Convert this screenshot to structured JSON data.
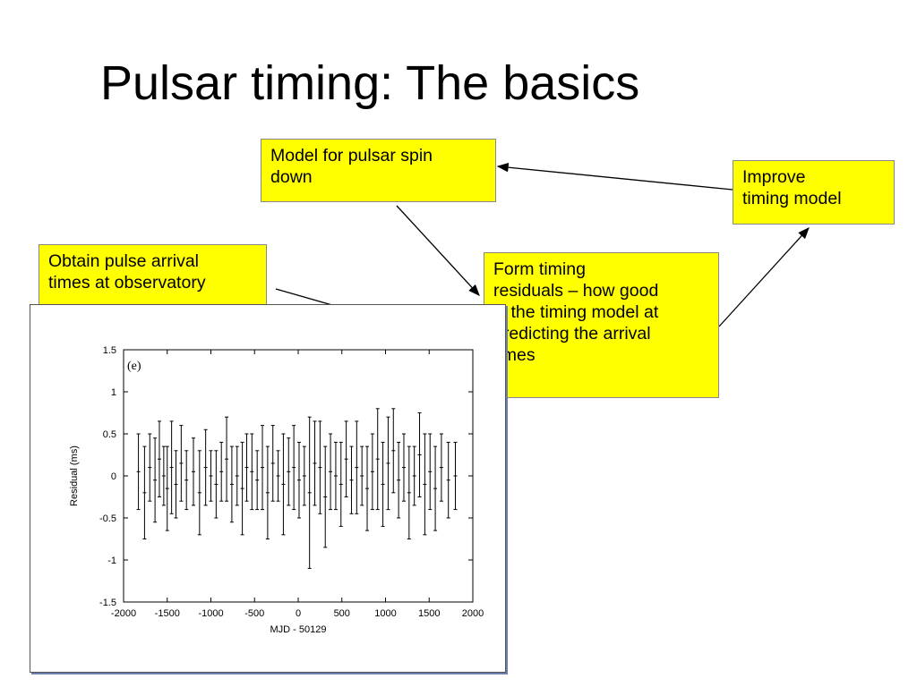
{
  "title": "Pulsar timing: The basics",
  "nodes": [
    {
      "lines": [
        "Model for pulsar spin",
        "down"
      ]
    },
    {
      "lines": [
        "Improve",
        "timing model"
      ]
    },
    {
      "lines": [
        "Obtain pulse arrival",
        "times at observatory"
      ]
    },
    {
      "lines": [
        "Form timing",
        "residuals – how good",
        "is the timing model at",
        "predicting the arrival",
        "times"
      ]
    }
  ],
  "plot": {
    "type": "scatter",
    "annotation": "(e)",
    "x_label": "MJD - 50129",
    "y_label": "Residual (ms)",
    "xlim": [
      -2000,
      2000
    ],
    "ylim": [
      -1.5,
      1.5
    ],
    "xticks": [
      -2000,
      -1500,
      -1000,
      -500,
      0,
      500,
      1000,
      1500,
      2000
    ],
    "yticks": [
      -1.5,
      -1,
      -0.5,
      0,
      0.5,
      1,
      1.5
    ],
    "x": [
      -1830,
      -1760,
      -1700,
      -1640,
      -1590,
      -1540,
      -1500,
      -1450,
      -1400,
      -1340,
      -1280,
      -1200,
      -1130,
      -1060,
      -1000,
      -940,
      -880,
      -820,
      -760,
      -700,
      -640,
      -590,
      -530,
      -470,
      -410,
      -350,
      -290,
      -230,
      -170,
      -110,
      -50,
      10,
      70,
      130,
      190,
      250,
      310,
      370,
      430,
      490,
      550,
      610,
      670,
      730,
      790,
      850,
      910,
      970,
      1030,
      1090,
      1150,
      1210,
      1270,
      1330,
      1390,
      1450,
      1510,
      1570,
      1640,
      1720,
      1800
    ],
    "values": [
      0.05,
      -0.2,
      0.1,
      -0.05,
      0.2,
      0,
      -0.15,
      0.1,
      -0.1,
      0.15,
      -0.05,
      0.05,
      -0.2,
      0.1,
      0,
      -0.1,
      0.05,
      0.2,
      -0.1,
      0,
      -0.15,
      0.1,
      0.05,
      -0.05,
      0.1,
      -0.2,
      0.15,
      0,
      -0.1,
      0.05,
      0.1,
      -0.05,
      0,
      -0.2,
      0.15,
      0.1,
      -0.25,
      0.05,
      0,
      -0.1,
      0.2,
      -0.05,
      0.1,
      0,
      -0.15,
      0.05,
      0.2,
      -0.1,
      0.15,
      0.3,
      -0.05,
      0.1,
      -0.2,
      0,
      0.25,
      -0.1,
      0.05,
      -0.15,
      0.1,
      -0.05,
      0
    ],
    "errors": [
      0.45,
      0.55,
      0.4,
      0.5,
      0.45,
      0.35,
      0.5,
      0.55,
      0.4,
      0.45,
      0.35,
      0.4,
      0.5,
      0.45,
      0.3,
      0.4,
      0.35,
      0.5,
      0.45,
      0.35,
      0.55,
      0.4,
      0.45,
      0.35,
      0.5,
      0.55,
      0.45,
      0.3,
      0.6,
      0.4,
      0.5,
      0.45,
      0.35,
      0.9,
      0.5,
      0.55,
      0.6,
      0.45,
      0.4,
      0.5,
      0.45,
      0.4,
      0.55,
      0.35,
      0.5,
      0.45,
      0.6,
      0.5,
      0.55,
      0.5,
      0.45,
      0.4,
      0.55,
      0.35,
      0.5,
      0.6,
      0.45,
      0.5,
      0.4,
      0.45,
      0.4
    ]
  }
}
